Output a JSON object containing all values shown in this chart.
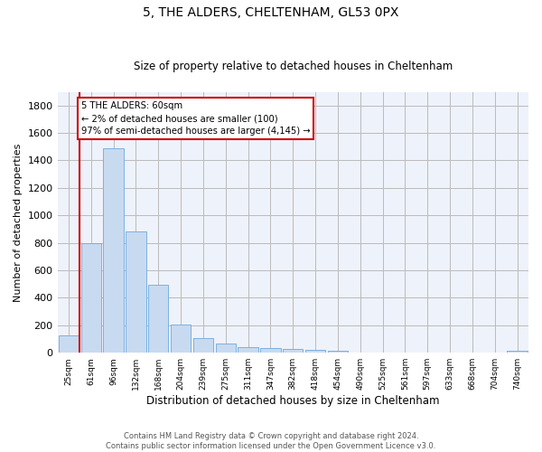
{
  "title": "5, THE ALDERS, CHELTENHAM, GL53 0PX",
  "subtitle": "Size of property relative to detached houses in Cheltenham",
  "xlabel": "Distribution of detached houses by size in Cheltenham",
  "ylabel": "Number of detached properties",
  "bar_color": "#c8daf0",
  "bar_edge_color": "#6aaae0",
  "grid_color": "#bbbbbb",
  "background_color": "#eef2fb",
  "categories": [
    "25sqm",
    "61sqm",
    "96sqm",
    "132sqm",
    "168sqm",
    "204sqm",
    "239sqm",
    "275sqm",
    "311sqm",
    "347sqm",
    "382sqm",
    "418sqm",
    "454sqm",
    "490sqm",
    "525sqm",
    "561sqm",
    "597sqm",
    "633sqm",
    "668sqm",
    "704sqm",
    "740sqm"
  ],
  "values": [
    125,
    800,
    1490,
    880,
    495,
    205,
    105,
    65,
    40,
    35,
    30,
    22,
    15,
    0,
    0,
    0,
    0,
    0,
    0,
    0,
    15
  ],
  "ylim": [
    0,
    1900
  ],
  "yticks": [
    0,
    200,
    400,
    600,
    800,
    1000,
    1200,
    1400,
    1600,
    1800
  ],
  "property_line_color": "#cc0000",
  "property_line_x": 0.5,
  "annotation_text": "5 THE ALDERS: 60sqm\n← 2% of detached houses are smaller (100)\n97% of semi-detached houses are larger (4,145) →",
  "annotation_box_color": "#ffffff",
  "annotation_border_color": "#cc0000",
  "footer_line1": "Contains HM Land Registry data © Crown copyright and database right 2024.",
  "footer_line2": "Contains public sector information licensed under the Open Government Licence v3.0."
}
